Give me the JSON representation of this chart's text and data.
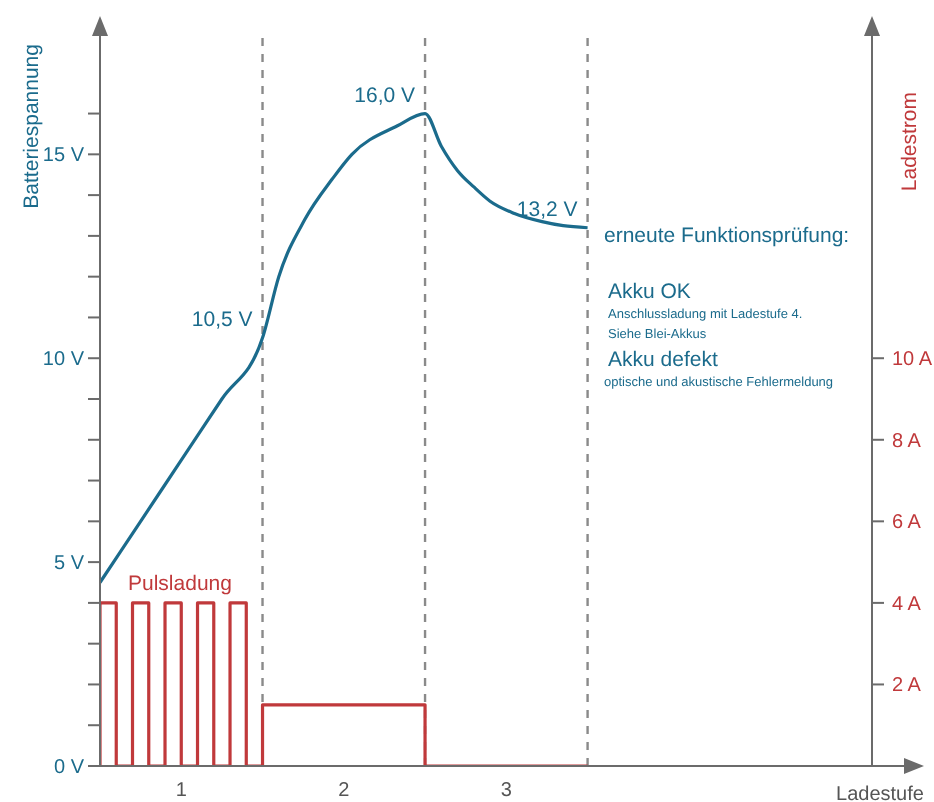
{
  "chart_data": {
    "type": "line",
    "xlabel": "Ladestufe",
    "ylabel": "Batteriespannung",
    "y2label": "Ladestrom",
    "xlim": [
      0,
      4.75
    ],
    "xticks": [
      {
        "value": 0.5,
        "label": "1"
      },
      {
        "value": 1.5,
        "label": "2"
      },
      {
        "value": 2.5,
        "label": "3"
      }
    ],
    "ylim": [
      0,
      18
    ],
    "yticks": [
      {
        "value": 0,
        "label": "0 V"
      },
      {
        "value": 1,
        "label": null
      },
      {
        "value": 2,
        "label": null
      },
      {
        "value": 3,
        "label": null
      },
      {
        "value": 4,
        "label": null
      },
      {
        "value": 5,
        "label": "5 V"
      },
      {
        "value": 6,
        "label": null
      },
      {
        "value": 7,
        "label": null
      },
      {
        "value": 8,
        "label": null
      },
      {
        "value": 9,
        "label": null
      },
      {
        "value": 10,
        "label": "10 V"
      },
      {
        "value": 11,
        "label": null
      },
      {
        "value": 12,
        "label": null
      },
      {
        "value": 13,
        "label": null
      },
      {
        "value": 14,
        "label": null
      },
      {
        "value": 15,
        "label": "15 V"
      },
      {
        "value": 16,
        "label": null
      }
    ],
    "y2lim": [
      0,
      18
    ],
    "y2ticks": [
      {
        "value": 2,
        "label": "2 A"
      },
      {
        "value": 4,
        "label": "4 A"
      },
      {
        "value": 6,
        "label": "6 A"
      },
      {
        "value": 8,
        "label": "8 A"
      },
      {
        "value": 10,
        "label": "10 A"
      }
    ],
    "series": [
      {
        "type": "line",
        "color": "#1b6b8c",
        "x": [
          0,
          0.25,
          0.5,
          0.75,
          1,
          1.1,
          1.26,
          1.43,
          1.55,
          1.83,
          2,
          2.1,
          2.2,
          2.3,
          2.4,
          2.55,
          2.72,
          2.85,
          3
        ],
        "values": [
          4.5,
          6,
          7.5,
          9,
          10.5,
          12.0,
          13.4,
          14.4,
          15.0,
          15.7,
          16.0,
          15.2,
          14.6,
          14.2,
          13.85,
          13.55,
          13.35,
          13.25,
          13.2
        ]
      },
      {
        "type": "line",
        "axis": "y2",
        "color": "#c0393b",
        "x": [
          0,
          0,
          0.1,
          0.1,
          0.2,
          0.2,
          0.3,
          0.3,
          0.4,
          0.4,
          0.5,
          0.5,
          0.6,
          0.6,
          0.7,
          0.7,
          0.8,
          0.8,
          0.9,
          0.9,
          1,
          1,
          2,
          2,
          3
        ],
        "values": [
          0,
          4,
          4,
          0,
          0,
          4,
          4,
          0,
          0,
          4,
          4,
          0,
          0,
          4,
          4,
          0,
          0,
          4,
          4,
          0,
          0,
          1.5,
          1.5,
          0,
          0
        ]
      }
    ],
    "ref_lines": [
      {
        "axis": "x",
        "value": 1,
        "color": "#8a8a8a",
        "line_style": "dashed"
      },
      {
        "axis": "x",
        "value": 2,
        "color": "#8a8a8a",
        "line_style": "dashed"
      },
      {
        "axis": "x",
        "value": 3,
        "color": "#8a8a8a",
        "line_style": "dashed"
      }
    ],
    "annotations": [
      {
        "text": "10,5 V",
        "x": 1,
        "y": 10.5
      },
      {
        "text": "16,0 V",
        "x": 2,
        "y": 16.0
      },
      {
        "text": "13,2 V",
        "x": 3,
        "y": 13.2
      },
      "Pulsladung",
      "erneute Funktionsprüfung:",
      "Akku OK",
      "Anschlussladung mit Ladestufe 4.",
      "Siehe Blei-Akkus",
      "Akku defekt",
      "optische und akustische Fehlermeldung"
    ]
  }
}
